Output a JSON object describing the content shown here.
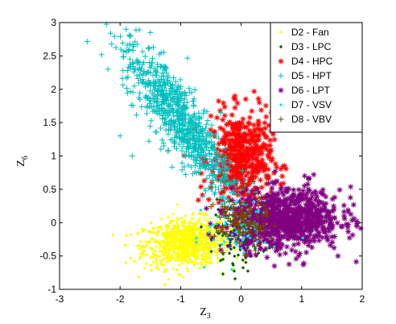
{
  "chart_data": {
    "type": "scatter",
    "xlabel": "Z",
    "xlabel_sub": "3",
    "ylabel": "Z",
    "ylabel_sub": "6",
    "xlim": [
      -3,
      2
    ],
    "ylim": [
      -1,
      3
    ],
    "xticks": [
      "-3",
      "-2",
      "-1",
      "0",
      "1",
      "2"
    ],
    "yticks": [
      "-1",
      "-0.5",
      "0",
      "0.5",
      "1",
      "1.5",
      "2",
      "2.5",
      "3"
    ],
    "grid": false,
    "legend_position": "top-right",
    "series": [
      {
        "name": "D2 - Fan",
        "marker": "dot",
        "color": "#ffff00",
        "cluster": {
          "cx": -0.9,
          "cy": -0.3,
          "sx": 0.35,
          "sy": 0.18,
          "rho": 0.15,
          "n": 900
        },
        "extremes": [
          [
            -1.9,
            -0.6
          ],
          [
            -1.7,
            -0.15
          ],
          [
            -0.3,
            -0.75
          ],
          [
            -1.2,
            -0.85
          ],
          [
            -0.5,
            0.25
          ]
        ]
      },
      {
        "name": "D3 - LPC",
        "marker": "diamond",
        "color": "#006400",
        "cluster": {
          "cx": 0.0,
          "cy": -0.15,
          "sx": 0.22,
          "sy": 0.22,
          "rho": 0.0,
          "n": 160
        },
        "extremes": [
          [
            -0.4,
            0.35
          ],
          [
            0.25,
            -0.5
          ],
          [
            -0.3,
            -0.55
          ]
        ]
      },
      {
        "name": "D4 - HPC",
        "marker": "star",
        "color": "#ff0000",
        "cluster": {
          "cx": 0.0,
          "cy": 0.95,
          "sx": 0.25,
          "sy": 0.35,
          "rho": 0.0,
          "n": 500
        },
        "extremes": [
          [
            -0.1,
            1.85
          ],
          [
            0.3,
            1.8
          ],
          [
            -0.5,
            1.6
          ],
          [
            0.35,
            0.9
          ],
          [
            0.2,
            0.2
          ]
        ]
      },
      {
        "name": "D5 - HPT",
        "marker": "plus",
        "color": "#00bfbf",
        "cluster": {
          "cx": -1.05,
          "cy": 1.6,
          "sx": 0.45,
          "sy": 0.55,
          "rho": -0.85,
          "n": 800
        },
        "extremes": [
          [
            -1.9,
            2.9
          ],
          [
            -1.5,
            2.85
          ],
          [
            -2.2,
            2.3
          ],
          [
            -2.0,
            1.3
          ],
          [
            -1.8,
            1.0
          ],
          [
            -0.3,
            0.4
          ]
        ]
      },
      {
        "name": "D6 - LPT",
        "marker": "star",
        "color": "#800080",
        "cluster": {
          "cx": 0.75,
          "cy": 0.05,
          "sx": 0.45,
          "sy": 0.22,
          "rho": 0.05,
          "n": 900
        },
        "extremes": [
          [
            1.7,
            0.1
          ],
          [
            1.6,
            -0.5
          ],
          [
            0.55,
            -0.65
          ],
          [
            1.05,
            0.7
          ],
          [
            1.2,
            0.72
          ],
          [
            0.95,
            -0.5
          ]
        ]
      },
      {
        "name": "D7 - VSV",
        "marker": "dot",
        "color": "#00e5e5",
        "cluster": {
          "cx": -0.05,
          "cy": 0.0,
          "sx": 0.25,
          "sy": 0.25,
          "rho": 0.0,
          "n": 120
        },
        "extremes": [
          [
            -0.6,
            0.5
          ],
          [
            0.25,
            0.45
          ]
        ]
      },
      {
        "name": "D8 - VBV",
        "marker": "plus",
        "color": "#804000",
        "cluster": {
          "cx": 0.0,
          "cy": 0.0,
          "sx": 0.22,
          "sy": 0.2,
          "rho": 0.0,
          "n": 120
        },
        "extremes": [
          [
            0.3,
            0.3
          ],
          [
            -0.3,
            -0.45
          ]
        ]
      }
    ]
  }
}
